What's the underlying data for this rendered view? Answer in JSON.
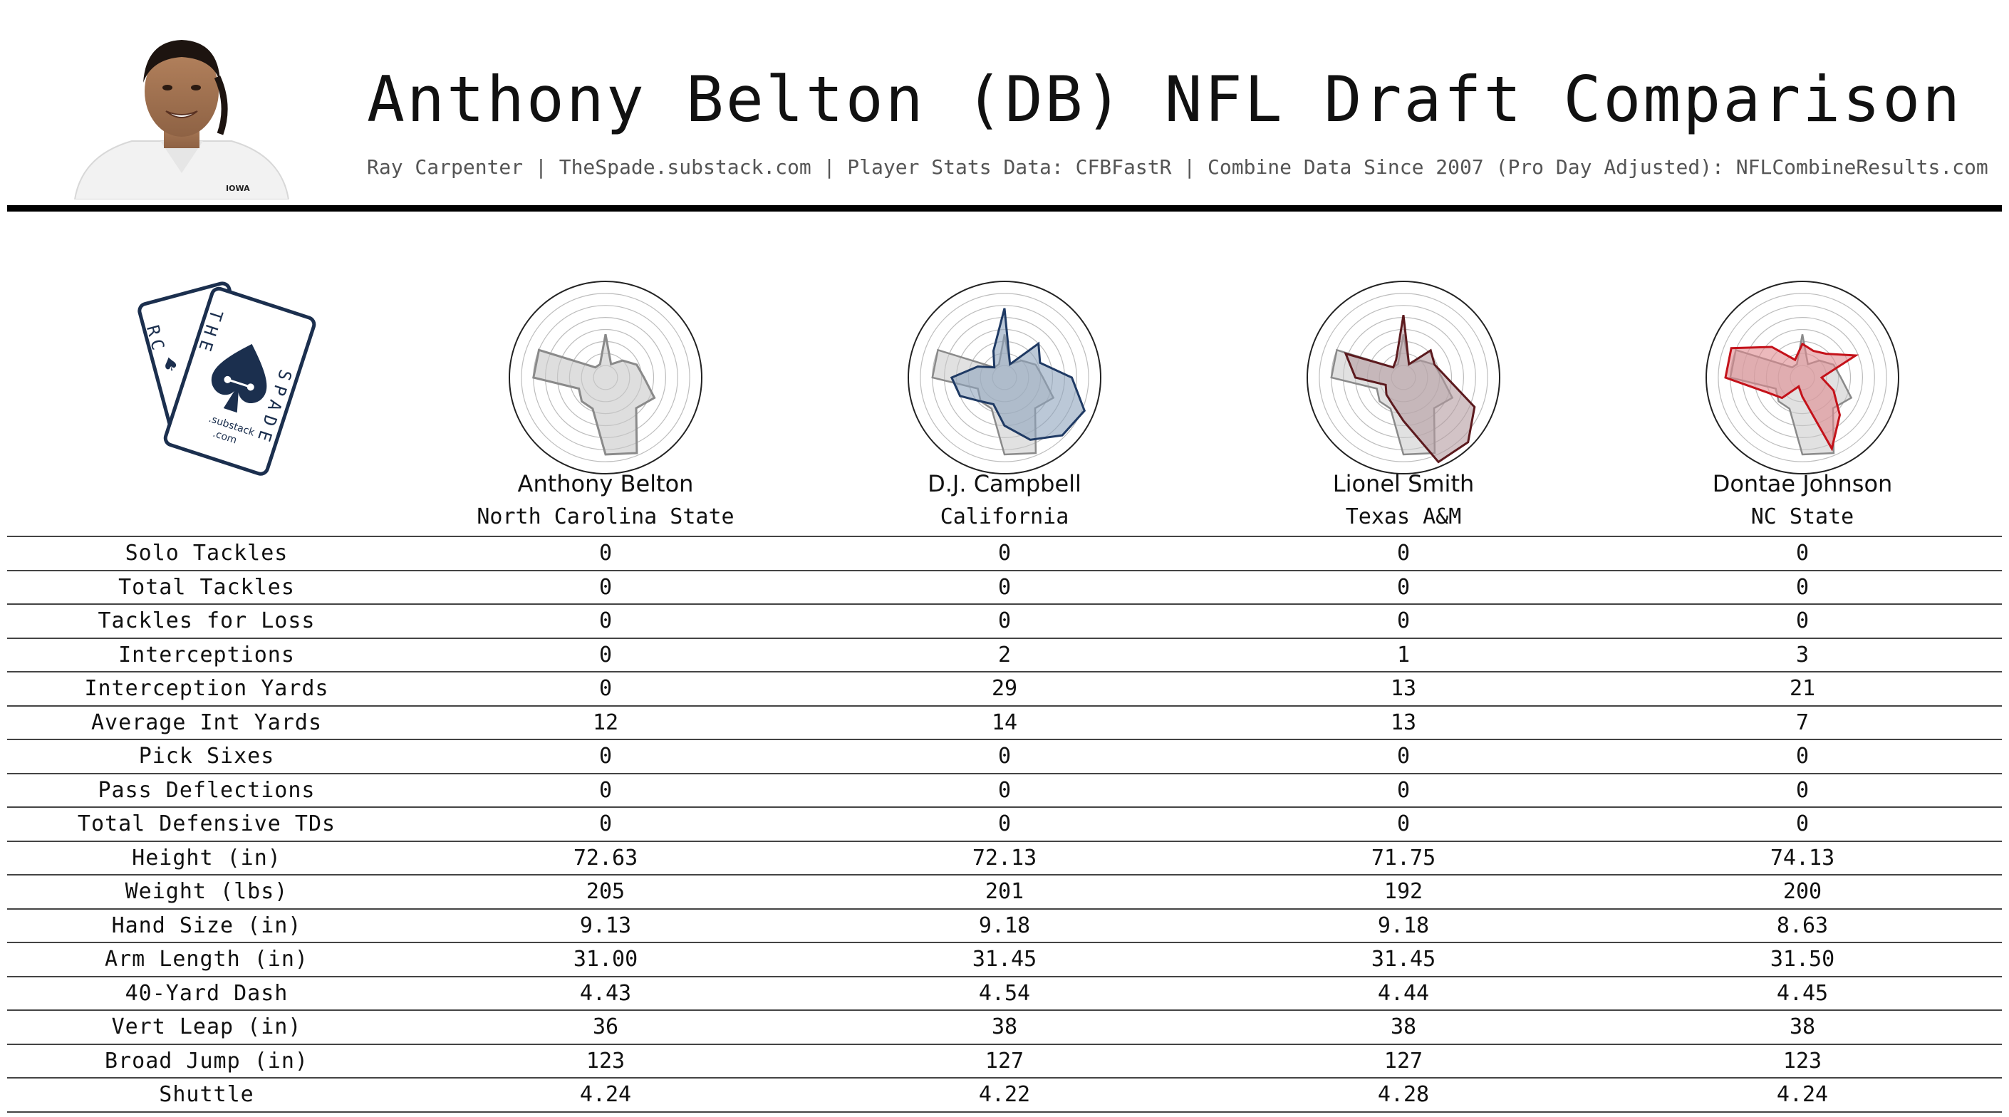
{
  "header": {
    "title": "Anthony Belton (DB) NFL Draft Comparison",
    "subtitle": "Ray Carpenter | TheSpade.substack.com | Player Stats Data: CFBFastR | Combine Data Since 2007 (Pro Day Adjusted): NFLCombineResults.com",
    "headshot_shirt_text": "IOWA"
  },
  "logo": {
    "card_back_letters": "RC",
    "card_front_letters_left": "THE",
    "card_front_letters_right": "SPADE",
    "substack_text": ".substack",
    "com_text": ".com",
    "color": "#1b2f4e"
  },
  "colors": {
    "reference": "#8a8a8a",
    "reference_fill": "#c8c8c8",
    "players": [
      "#8a8a8a",
      "#1f3a64",
      "#5c1a1e",
      "#c4121a"
    ],
    "fills": [
      "#c8c8c8",
      "#8ea3bc",
      "#b49ba0",
      "#e08a90"
    ]
  },
  "chart_data": {
    "type": "table",
    "radar": {
      "rings": 8,
      "reference_player": "Anthony Belton",
      "axes_count": 16,
      "players": [
        {
          "name": "Anthony Belton",
          "school": "North Carolina State",
          "values": [
            0.45,
            0.15,
            0.25,
            0.35,
            0.4,
            0.55,
            0.45,
            0.85,
            0.8,
            0.35,
            0.35,
            0.3,
            0.75,
            0.75,
            0.15,
            0.15
          ]
        },
        {
          "name": "D.J. Campbell",
          "school": "California",
          "values": [
            0.72,
            0.15,
            0.5,
            0.4,
            0.7,
            0.9,
            0.85,
            0.7,
            0.5,
            0.3,
            0.35,
            0.5,
            0.55,
            0.3,
            0.15,
            0.3
          ]
        },
        {
          "name": "Lionel Smith",
          "school": "Texas A&M",
          "values": [
            0.65,
            0.15,
            0.4,
            0.35,
            0.45,
            0.8,
            0.95,
            0.95,
            0.45,
            0.3,
            0.25,
            0.2,
            0.5,
            0.65,
            0.15,
            0.2
          ]
        },
        {
          "name": "Dontae Johnson",
          "school": "NC State",
          "values": [
            0.35,
            0.3,
            0.35,
            0.6,
            0.2,
            0.35,
            0.55,
            0.8,
            0.2,
            0.1,
            0.3,
            0.4,
            0.8,
            0.8,
            0.45,
            0.2
          ]
        }
      ]
    },
    "columns": [
      "Anthony Belton",
      "D.J. Campbell",
      "Lionel Smith",
      "Dontae Johnson"
    ],
    "rows": [
      {
        "metric": "Solo Tackles",
        "values": [
          "0",
          "0",
          "0",
          "0"
        ]
      },
      {
        "metric": "Total Tackles",
        "values": [
          "0",
          "0",
          "0",
          "0"
        ]
      },
      {
        "metric": "Tackles for Loss",
        "values": [
          "0",
          "0",
          "0",
          "0"
        ]
      },
      {
        "metric": "Interceptions",
        "values": [
          "0",
          "2",
          "1",
          "3"
        ]
      },
      {
        "metric": "Interception Yards",
        "values": [
          "0",
          "29",
          "13",
          "21"
        ]
      },
      {
        "metric": "Average Int Yards",
        "values": [
          "12",
          "14",
          "13",
          "7"
        ]
      },
      {
        "metric": "Pick Sixes",
        "values": [
          "0",
          "0",
          "0",
          "0"
        ]
      },
      {
        "metric": "Pass Deflections",
        "values": [
          "0",
          "0",
          "0",
          "0"
        ]
      },
      {
        "metric": "Total Defensive TDs",
        "values": [
          "0",
          "0",
          "0",
          "0"
        ]
      },
      {
        "metric": "Height (in)",
        "values": [
          "72.63",
          "72.13",
          "71.75",
          "74.13"
        ]
      },
      {
        "metric": "Weight (lbs)",
        "values": [
          "205",
          "201",
          "192",
          "200"
        ]
      },
      {
        "metric": "Hand Size (in)",
        "values": [
          "9.13",
          "9.18",
          "9.18",
          "8.63"
        ]
      },
      {
        "metric": "Arm Length (in)",
        "values": [
          "31.00",
          "31.45",
          "31.45",
          "31.50"
        ]
      },
      {
        "metric": "40-Yard Dash",
        "values": [
          "4.43",
          "4.54",
          "4.44",
          "4.45"
        ]
      },
      {
        "metric": "Vert Leap (in)",
        "values": [
          "36",
          "38",
          "38",
          "38"
        ]
      },
      {
        "metric": "Broad Jump (in)",
        "values": [
          "123",
          "127",
          "127",
          "123"
        ]
      },
      {
        "metric": "Shuttle",
        "values": [
          "4.24",
          "4.22",
          "4.28",
          "4.24"
        ]
      }
    ]
  }
}
